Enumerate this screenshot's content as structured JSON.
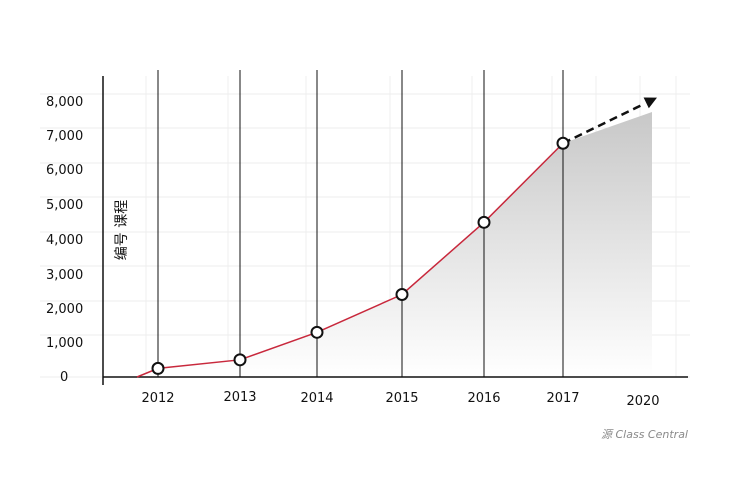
{
  "chart_data": {
    "type": "line",
    "ylabel": "编号 课程",
    "y_ticks": [
      "0",
      "1,000",
      "2,000",
      "3,000",
      "4,000",
      "5,000",
      "6,000",
      "7,000",
      "8,000"
    ],
    "ylim": [
      0,
      8000
    ],
    "x": [
      "2012",
      "2013",
      "2014",
      "2015",
      "2016",
      "2017"
    ],
    "values": [
      250,
      500,
      1300,
      2400,
      4500,
      6800
    ],
    "x_labels": [
      "2012",
      "2013",
      "2014",
      "2015",
      "2016",
      "2017",
      "2020"
    ],
    "projection_label": "2020",
    "projection_value": 8000,
    "grid": true,
    "source": "源 Class Central"
  },
  "colors": {
    "line": "#c8283c",
    "projection_label": "#c8283c",
    "arrow": "#111111",
    "fill_top": "#c8c8c8",
    "fill_bottom": "#ffffff"
  }
}
